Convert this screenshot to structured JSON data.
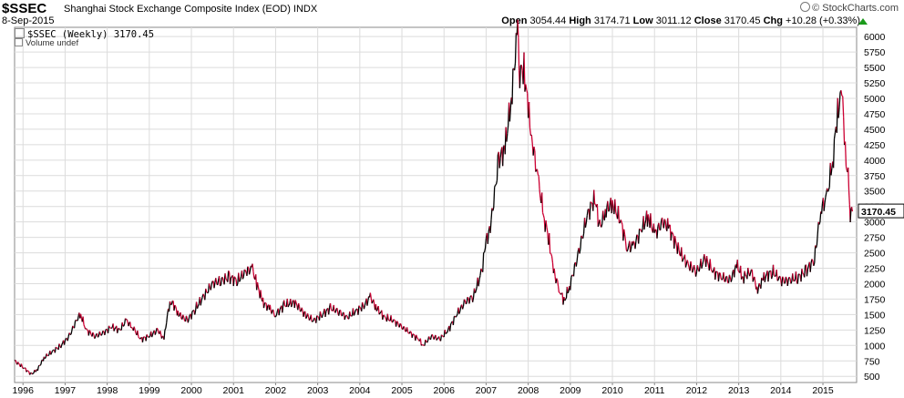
{
  "header": {
    "symbol": "$SSEC",
    "name": "Shanghai Stock Exchange Composite Index (EOD)",
    "exchange": "INDX",
    "date": "8-Sep-2015",
    "brand": "© StockCharts.com",
    "open_label": "Open",
    "open": "3054.44",
    "high_label": "High",
    "high": "3174.71",
    "low_label": "Low",
    "low": "3011.12",
    "close_label": "Close",
    "close": "3170.45",
    "chg_label": "Chg",
    "chg": "+10.28 (+0.33%)",
    "chg_color": "#1a9a1a"
  },
  "legend": {
    "price": "$SSEC (Weekly) 3170.45",
    "volume": "Volume undef"
  },
  "chart_data": {
    "type": "line",
    "series": [
      {
        "color": "#000000",
        "down_color": "#cc0033",
        "x": [
          1995.8,
          1996.0,
          1996.2,
          1996.35,
          1996.5,
          1996.7,
          1996.9,
          1997.1,
          1997.3,
          1997.37,
          1997.5,
          1997.7,
          1997.9,
          1998.1,
          1998.3,
          1998.45,
          1998.6,
          1998.8,
          1999.0,
          1999.2,
          1999.35,
          1999.45,
          1999.55,
          1999.7,
          1999.9,
          2000.1,
          2000.3,
          2000.5,
          2000.7,
          2000.9,
          2001.1,
          2001.3,
          2001.45,
          2001.55,
          2001.7,
          2001.85,
          2002.0,
          2002.2,
          2002.45,
          2002.7,
          2002.9,
          2003.1,
          2003.3,
          2003.5,
          2003.7,
          2003.9,
          2004.1,
          2004.25,
          2004.4,
          2004.6,
          2004.8,
          2005.0,
          2005.2,
          2005.4,
          2005.5,
          2005.7,
          2005.9,
          2006.1,
          2006.3,
          2006.5,
          2006.7,
          2006.9,
          2007.0,
          2007.1,
          2007.3,
          2007.45,
          2007.6,
          2007.75,
          2007.8,
          2007.9,
          2008.0,
          2008.1,
          2008.25,
          2008.4,
          2008.5,
          2008.6,
          2008.75,
          2008.85,
          2009.0,
          2009.2,
          2009.4,
          2009.58,
          2009.7,
          2009.85,
          2010.0,
          2010.2,
          2010.35,
          2010.5,
          2010.7,
          2010.85,
          2011.0,
          2011.2,
          2011.35,
          2011.6,
          2011.8,
          2012.0,
          2012.2,
          2012.4,
          2012.6,
          2012.8,
          2012.95,
          2013.1,
          2013.3,
          2013.45,
          2013.6,
          2013.8,
          2014.0,
          2014.2,
          2014.4,
          2014.6,
          2014.8,
          2014.95,
          2015.1,
          2015.25,
          2015.35,
          2015.45,
          2015.55,
          2015.6,
          2015.65,
          2015.7
        ],
        "y": [
          750,
          650,
          530,
          620,
          800,
          900,
          1000,
          1150,
          1450,
          1500,
          1250,
          1150,
          1200,
          1300,
          1250,
          1400,
          1300,
          1100,
          1150,
          1250,
          1100,
          1600,
          1700,
          1500,
          1400,
          1600,
          1800,
          2000,
          2050,
          2100,
          2050,
          2200,
          2240,
          2000,
          1700,
          1600,
          1500,
          1650,
          1700,
          1500,
          1400,
          1500,
          1600,
          1550,
          1450,
          1550,
          1650,
          1780,
          1600,
          1450,
          1400,
          1300,
          1200,
          1100,
          1000,
          1150,
          1100,
          1250,
          1500,
          1700,
          1800,
          2200,
          2700,
          2900,
          4000,
          4200,
          5000,
          6124,
          5400,
          5500,
          4800,
          4300,
          3600,
          3000,
          2700,
          2200,
          1900,
          1700,
          2000,
          2500,
          3100,
          3400,
          2900,
          3200,
          3300,
          3000,
          2600,
          2600,
          2900,
          3100,
          2800,
          3000,
          2900,
          2500,
          2300,
          2200,
          2400,
          2200,
          2100,
          2050,
          2300,
          2100,
          2200,
          1900,
          2100,
          2200,
          2050,
          2050,
          2100,
          2200,
          2400,
          3200,
          3400,
          4100,
          4800,
          5100,
          4000,
          3700,
          3150,
          3170
        ]
      }
    ],
    "x_ticks": [
      "1996",
      "1997",
      "1998",
      "1999",
      "2000",
      "2001",
      "2002",
      "2003",
      "2004",
      "2005",
      "2006",
      "2007",
      "2008",
      "2009",
      "2010",
      "2011",
      "2012",
      "2013",
      "2014",
      "2015"
    ],
    "y_ticks": [
      500,
      750,
      1000,
      1250,
      1500,
      1750,
      2000,
      2250,
      2500,
      2750,
      3000,
      3250,
      3500,
      3750,
      4000,
      4250,
      4500,
      4750,
      5000,
      5250,
      5500,
      5750,
      6000
    ],
    "xlim": [
      1995.8,
      2015.8
    ],
    "ylim": [
      400,
      6150
    ],
    "last_value": "3170.45",
    "grid": true
  }
}
